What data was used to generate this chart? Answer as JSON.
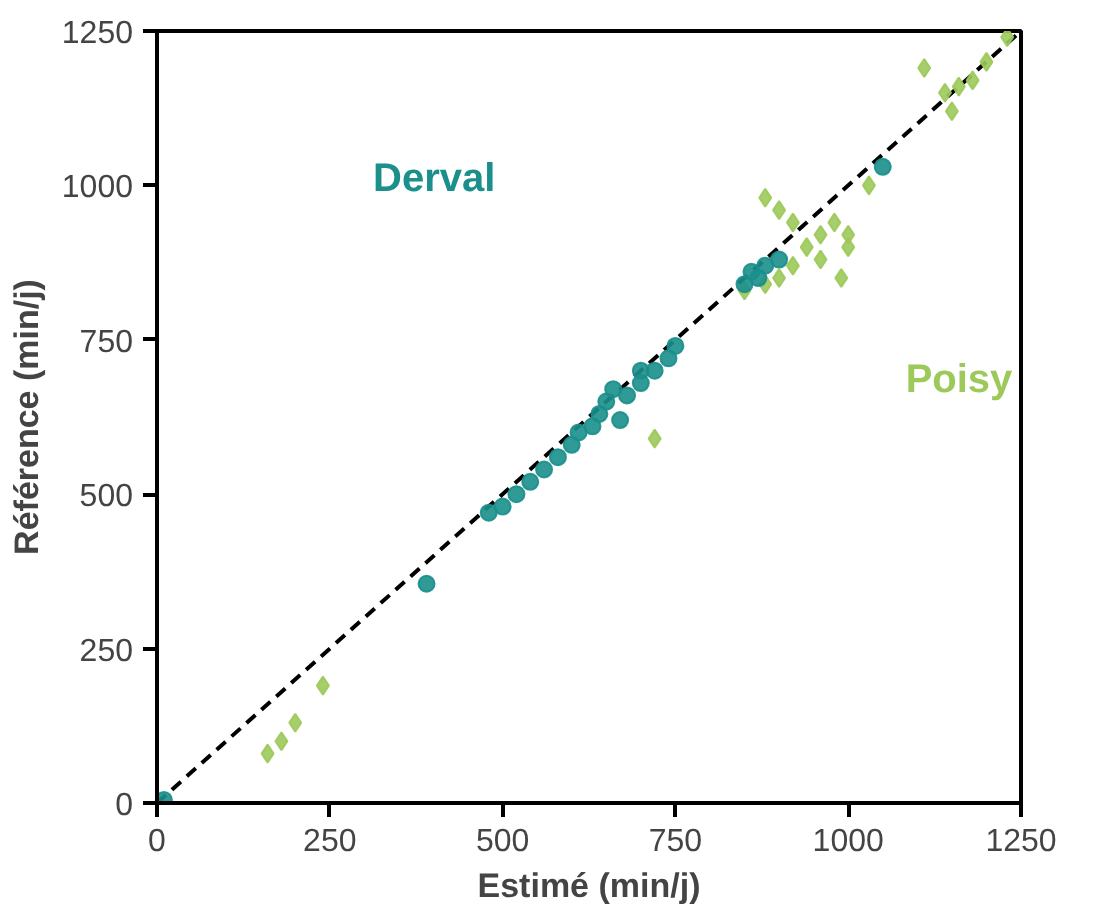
{
  "chart_data": {
    "type": "scatter",
    "xlabel": "Estimé (min/j)",
    "ylabel": "Référence (min/j)",
    "xlim": [
      0,
      1250
    ],
    "ylim": [
      0,
      1250
    ],
    "xticks": [
      0,
      250,
      500,
      750,
      1000,
      1250
    ],
    "yticks": [
      0,
      250,
      500,
      750,
      1000,
      1250
    ],
    "grid": false,
    "series": [
      {
        "name": "Derval",
        "color": "#1a8f8c",
        "marker": "circle",
        "x": [
          10,
          390,
          480,
          500,
          520,
          540,
          560,
          580,
          600,
          610,
          630,
          640,
          650,
          660,
          680,
          700,
          720,
          740,
          750,
          700,
          670,
          850,
          860,
          880,
          870,
          900,
          1050
        ],
        "values": [
          5,
          355,
          470,
          480,
          500,
          520,
          540,
          560,
          580,
          600,
          610,
          630,
          650,
          670,
          660,
          680,
          700,
          720,
          740,
          700,
          620,
          840,
          860,
          870,
          850,
          880,
          1030
        ]
      },
      {
        "name": "Poisy",
        "color": "#9cc95a",
        "marker": "diamond",
        "x": [
          160,
          180,
          200,
          240,
          720,
          850,
          880,
          900,
          920,
          940,
          960,
          900,
          880,
          960,
          990,
          1000,
          920,
          980,
          1030,
          1110,
          1140,
          1150,
          1180,
          1200,
          1230,
          1160,
          1000
        ],
        "values": [
          80,
          100,
          130,
          190,
          590,
          830,
          840,
          850,
          870,
          900,
          920,
          960,
          980,
          880,
          850,
          900,
          940,
          940,
          1000,
          1190,
          1150,
          1120,
          1170,
          1200,
          1240,
          1160,
          920
        ]
      },
      {
        "type": "line",
        "color": "#000000",
        "line_style": "dashed",
        "x": [
          0,
          1250
        ],
        "values": [
          0,
          1250
        ]
      }
    ]
  }
}
